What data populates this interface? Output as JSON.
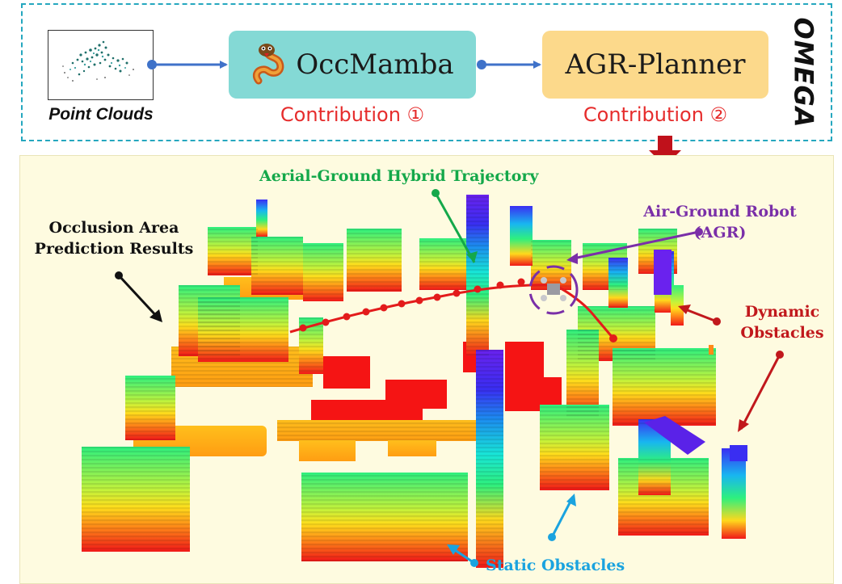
{
  "pipeline": {
    "input_label": "Point Clouds",
    "module1": "OccMamba",
    "module2": "AGR-Planner",
    "contribution1": "Contribution ①",
    "contribution2": "Contribution ②",
    "framework_name": "OMEGA"
  },
  "scene": {
    "trajectory_label": "Aerial-Ground Hybrid Trajectory",
    "robot_label_line1": "Air-Ground Robot",
    "robot_label_line2": "(AGR)",
    "occlusion_label_line1": "Occlusion Area",
    "occlusion_label_line2": "Prediction Results",
    "dynamic_label_line1": "Dynamic",
    "dynamic_label_line2": "Obstacles",
    "static_label": "Static Obstacles"
  },
  "colors": {
    "frame": "#25a7bf",
    "module1_fill": "#84d9d5",
    "module2_fill": "#fcd98b",
    "contribution_text": "#e62c2c",
    "arrow": "#3f72c9",
    "down_arrow": "#c0111b",
    "trajectory_label": "#14a84a",
    "robot_label": "#7a2fa8",
    "dynamic_label": "#c1181c",
    "static_label": "#1aa3df",
    "occlusion_label": "#111111",
    "scene_bg": "#fefbe0"
  },
  "icons": [
    "snake-mascot-icon",
    "drone-robot-icon"
  ]
}
